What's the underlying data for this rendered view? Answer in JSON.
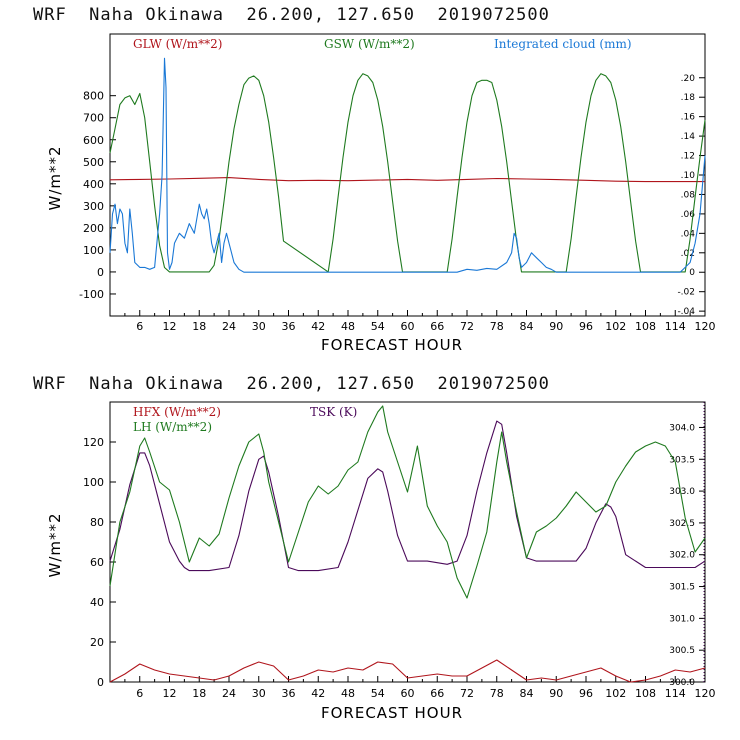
{
  "colors": {
    "red": "#b0151c",
    "green": "#1f7a1f",
    "blue": "#1a78d6",
    "purple": "#4b0a5a"
  },
  "chart_data": [
    {
      "type": "line",
      "header": "WRF  Naha Okinawa  26.200, 127.650  2019072500",
      "xlabel": "FORECAST HOUR",
      "ylabel": "W/m**2",
      "xlim": [
        0,
        120
      ],
      "ylim": [
        -200,
        1080
      ],
      "y2lim": [
        -0.045,
        0.245
      ],
      "xticks": [
        6,
        12,
        18,
        24,
        30,
        36,
        42,
        48,
        54,
        60,
        66,
        72,
        78,
        84,
        90,
        96,
        102,
        108,
        114,
        120
      ],
      "yticks": [
        -100,
        0,
        100,
        200,
        300,
        400,
        500,
        600,
        700,
        800
      ],
      "y2ticks": [
        ".20",
        ".18",
        ".16",
        ".14",
        ".12",
        ".10",
        ".08",
        ".06",
        ".04",
        ".02",
        "0",
        "-.02",
        "-.04"
      ],
      "y2tick_values": [
        0.2,
        0.18,
        0.16,
        0.14,
        0.12,
        0.1,
        0.08,
        0.06,
        0.04,
        0.02,
        0,
        -0.02,
        -0.04
      ],
      "series": [
        {
          "name": "GLW (W/m**2)",
          "color": "#b0151c",
          "axis": "left",
          "x": [
            0,
            6,
            12,
            18,
            24,
            30,
            36,
            42,
            48,
            54,
            60,
            66,
            72,
            78,
            84,
            90,
            96,
            102,
            108,
            114,
            120
          ],
          "y": [
            418,
            420,
            422,
            425,
            428,
            420,
            414,
            416,
            414,
            417,
            420,
            416,
            420,
            424,
            422,
            419,
            416,
            412,
            410,
            410,
            410
          ]
        },
        {
          "name": "GSW (W/m**2)",
          "color": "#1f7a1f",
          "axis": "left",
          "x": [
            0,
            1,
            2,
            3,
            4,
            5,
            6,
            7,
            8,
            9,
            10,
            11,
            12,
            20,
            21,
            22,
            23,
            24,
            25,
            26,
            27,
            28,
            29,
            30,
            31,
            32,
            33,
            34,
            35,
            44,
            45,
            46,
            47,
            48,
            49,
            50,
            51,
            52,
            53,
            54,
            55,
            56,
            57,
            58,
            59,
            68,
            69,
            70,
            71,
            72,
            73,
            74,
            75,
            76,
            77,
            78,
            79,
            80,
            81,
            82,
            83,
            92,
            93,
            94,
            95,
            96,
            97,
            98,
            99,
            100,
            101,
            102,
            103,
            104,
            105,
            106,
            107,
            116,
            117,
            118,
            119,
            120
          ],
          "y": [
            540,
            650,
            760,
            790,
            800,
            760,
            810,
            700,
            500,
            300,
            120,
            20,
            0,
            0,
            30,
            150,
            320,
            500,
            650,
            760,
            850,
            880,
            890,
            870,
            800,
            680,
            520,
            340,
            140,
            0,
            150,
            340,
            520,
            680,
            800,
            870,
            900,
            890,
            860,
            780,
            660,
            500,
            320,
            140,
            0,
            0,
            150,
            340,
            520,
            680,
            800,
            860,
            870,
            870,
            860,
            780,
            660,
            500,
            320,
            140,
            0,
            0,
            150,
            340,
            520,
            680,
            800,
            870,
            900,
            890,
            860,
            780,
            660,
            500,
            320,
            140,
            0,
            0,
            150,
            340,
            520,
            690
          ]
        },
        {
          "name": "Integrated cloud (mm)",
          "color": "#1a78d6",
          "axis": "right",
          "x": [
            0,
            0.5,
            1,
            1.5,
            2,
            2.5,
            3,
            3.5,
            4,
            4.5,
            5,
            6,
            7,
            8,
            9,
            10,
            10.5,
            11,
            11.3,
            11.6,
            12,
            12.5,
            13,
            14,
            15,
            16,
            17,
            18,
            18.5,
            19,
            19.5,
            20,
            20.5,
            21,
            22,
            22.5,
            23,
            23.5,
            24,
            24.5,
            25,
            26,
            27,
            28,
            30,
            40,
            50,
            60,
            70,
            72,
            74,
            76,
            78,
            80,
            81,
            81.5,
            82,
            82.5,
            83,
            84,
            85,
            86,
            87,
            88,
            89,
            90,
            100,
            110,
            115,
            116,
            117,
            118,
            119,
            119.5,
            120
          ],
          "y": [
            0.02,
            0.06,
            0.07,
            0.05,
            0.065,
            0.06,
            0.03,
            0.02,
            0.065,
            0.04,
            0.01,
            0.005,
            0.005,
            0.003,
            0.005,
            0.06,
            0.1,
            0.22,
            0.19,
            0.02,
            0.003,
            0.01,
            0.03,
            0.04,
            0.035,
            0.05,
            0.04,
            0.07,
            0.06,
            0.055,
            0.065,
            0.05,
            0.03,
            0.02,
            0.04,
            0.01,
            0.03,
            0.04,
            0.03,
            0.02,
            0.01,
            0.003,
            0,
            0,
            0,
            0,
            0,
            0,
            0,
            0.003,
            0.002,
            0.004,
            0.003,
            0.01,
            0.02,
            0.04,
            0.035,
            0.015,
            0.005,
            0.01,
            0.02,
            0.015,
            0.01,
            0.005,
            0.003,
            0,
            0,
            0,
            0,
            0.005,
            0.01,
            0.03,
            0.06,
            0.09,
            0.12
          ]
        }
      ]
    },
    {
      "type": "line",
      "header": "WRF  Naha Okinawa  26.200, 127.650  2019072500",
      "xlabel": "FORECAST HOUR",
      "ylabel": "W/m**2",
      "xlim": [
        0,
        120
      ],
      "ylim": [
        0,
        140
      ],
      "y2lim": [
        300.0,
        304.4
      ],
      "xticks": [
        6,
        12,
        18,
        24,
        30,
        36,
        42,
        48,
        54,
        60,
        66,
        72,
        78,
        84,
        90,
        96,
        102,
        108,
        114,
        120
      ],
      "yticks": [
        0,
        20,
        40,
        60,
        80,
        100,
        120
      ],
      "y2ticks": [
        "304.0",
        "303.5",
        "303.0",
        "302.5",
        "302.0",
        "301.5",
        "301.0",
        "300.5",
        "300.0"
      ],
      "y2tick_values": [
        304.0,
        303.5,
        303.0,
        302.5,
        302.0,
        301.5,
        301.0,
        300.5,
        300.0
      ],
      "series": [
        {
          "name": "HFX (W/m**2)",
          "color": "#b0151c",
          "axis": "left",
          "x": [
            0,
            3,
            6,
            9,
            12,
            15,
            18,
            21,
            24,
            27,
            30,
            33,
            36,
            39,
            42,
            45,
            48,
            51,
            54,
            57,
            60,
            63,
            66,
            69,
            72,
            75,
            78,
            81,
            84,
            87,
            90,
            93,
            96,
            99,
            102,
            105,
            108,
            111,
            114,
            117,
            120
          ],
          "y": [
            0,
            4,
            9,
            6,
            4,
            3,
            2,
            1,
            3,
            7,
            10,
            8,
            1,
            3,
            6,
            5,
            7,
            6,
            10,
            9,
            2,
            3,
            4,
            3,
            3,
            7,
            11,
            6,
            1,
            2,
            1,
            3,
            5,
            7,
            3,
            0,
            1,
            3,
            6,
            5,
            7
          ]
        },
        {
          "name": "TSK (K)",
          "color": "#4b0a5a",
          "axis": "right",
          "x": [
            0,
            2,
            4,
            6,
            7,
            8,
            10,
            12,
            14,
            15,
            16,
            20,
            24,
            26,
            28,
            30,
            31,
            32,
            34,
            36,
            38,
            42,
            46,
            48,
            50,
            52,
            54,
            55,
            56,
            58,
            60,
            64,
            68,
            70,
            72,
            74,
            76,
            78,
            79,
            80,
            82,
            84,
            86,
            90,
            94,
            96,
            98,
            100,
            101,
            102,
            104,
            108,
            114,
            118,
            120
          ],
          "y": [
            301.9,
            302.4,
            303.1,
            303.6,
            303.6,
            303.4,
            302.8,
            302.2,
            301.9,
            301.8,
            301.75,
            301.75,
            301.8,
            302.3,
            303.0,
            303.5,
            303.55,
            303.3,
            302.6,
            301.8,
            301.75,
            301.75,
            301.8,
            302.2,
            302.7,
            303.2,
            303.35,
            303.3,
            303.0,
            302.3,
            301.9,
            301.9,
            301.85,
            301.9,
            302.3,
            303.0,
            303.6,
            304.1,
            304.05,
            303.6,
            302.6,
            301.95,
            301.9,
            301.9,
            301.9,
            302.1,
            302.5,
            302.8,
            302.75,
            302.6,
            302.0,
            301.8,
            301.8,
            301.8,
            301.9
          ]
        },
        {
          "name": "LH (W/m**2)",
          "color": "#1f7a1f",
          "axis": "left",
          "x": [
            0,
            2,
            4,
            6,
            7,
            8,
            10,
            12,
            14,
            16,
            18,
            20,
            22,
            24,
            26,
            28,
            30,
            31,
            32,
            34,
            36,
            38,
            40,
            42,
            44,
            46,
            48,
            50,
            52,
            54,
            55,
            56,
            58,
            60,
            62,
            64,
            66,
            68,
            70,
            72,
            74,
            76,
            78,
            79,
            80,
            82,
            84,
            86,
            88,
            90,
            92,
            94,
            96,
            98,
            100,
            102,
            104,
            106,
            108,
            110,
            112,
            114,
            116,
            118,
            120
          ],
          "y": [
            48,
            80,
            95,
            118,
            122,
            115,
            100,
            96,
            80,
            60,
            72,
            68,
            74,
            92,
            108,
            120,
            124,
            115,
            100,
            80,
            60,
            75,
            90,
            98,
            94,
            98,
            106,
            110,
            125,
            135,
            138,
            125,
            110,
            95,
            118,
            88,
            78,
            70,
            52,
            42,
            58,
            75,
            110,
            125,
            110,
            85,
            62,
            75,
            78,
            82,
            88,
            95,
            90,
            85,
            88,
            100,
            108,
            115,
            118,
            120,
            118,
            110,
            82,
            65,
            72
          ]
        }
      ]
    }
  ],
  "panels": [
    {
      "header": "WRF  Naha Okinawa  26.200, 127.650  2019072500",
      "xlabel": "FORECAST HOUR",
      "ylabel": "W/m**2",
      "legend": [
        "GLW (W/m**2)",
        "GSW (W/m**2)",
        "Integrated cloud (mm)"
      ]
    },
    {
      "header": "WRF  Naha Okinawa  26.200, 127.650  2019072500",
      "xlabel": "FORECAST HOUR",
      "ylabel": "W/m**2",
      "legend": [
        "HFX (W/m**2)",
        "LH (W/m**2)",
        "TSK (K)"
      ]
    }
  ]
}
